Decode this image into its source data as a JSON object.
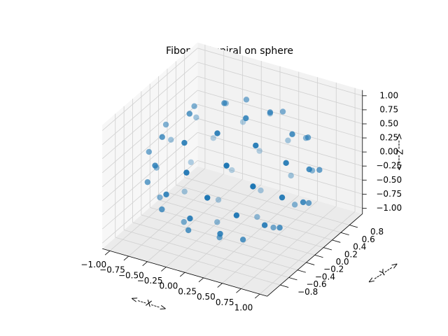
{
  "chart_data": {
    "type": "scatter3d",
    "title": "Fibonacci spiral on sphere",
    "xlabel": "<---X--->",
    "ylabel": "<---Y--->",
    "zlabel": "<---Z--->",
    "color": "#1f77b4",
    "grid": true,
    "xlim": [
      -1.1,
      1.1
    ],
    "ylim": [
      -1.1,
      1.1
    ],
    "zlim": [
      -1.1,
      1.1
    ],
    "xticks": [
      {
        "value": -1,
        "label": "−1.00"
      },
      {
        "value": -0.75,
        "label": "−0.75"
      },
      {
        "value": -0.5,
        "label": "−0.50"
      },
      {
        "value": -0.25,
        "label": "−0.25"
      },
      {
        "value": 0,
        "label": "0.00"
      },
      {
        "value": 0.25,
        "label": "0.25"
      },
      {
        "value": 0.5,
        "label": "0.50"
      },
      {
        "value": 0.75,
        "label": "0.75"
      },
      {
        "value": 1,
        "label": "1.00"
      }
    ],
    "yticks": [
      {
        "value": -0.8,
        "label": "−0.8"
      },
      {
        "value": -0.6,
        "label": "−0.6"
      },
      {
        "value": -0.4,
        "label": "−0.4"
      },
      {
        "value": -0.2,
        "label": "−0.2"
      },
      {
        "value": 0,
        "label": "0.0"
      },
      {
        "value": 0.2,
        "label": "0.2"
      },
      {
        "value": 0.4,
        "label": "0.4"
      },
      {
        "value": 0.6,
        "label": "0.6"
      },
      {
        "value": 0.8,
        "label": "0.8"
      }
    ],
    "zticks": [
      {
        "value": -1,
        "label": "−1.00"
      },
      {
        "value": -0.75,
        "label": "−0.75"
      },
      {
        "value": -0.5,
        "label": "−0.50"
      },
      {
        "value": -0.25,
        "label": "−0.25"
      },
      {
        "value": 0,
        "label": "0.00"
      },
      {
        "value": 0.25,
        "label": "0.25"
      },
      {
        "value": 0.5,
        "label": "0.50"
      },
      {
        "value": 0.75,
        "label": "0.75"
      },
      {
        "value": 1,
        "label": "1.00"
      }
    ],
    "x": [
      0.18,
      -0.23,
      0.03,
      0.29,
      -0.52,
      0.49,
      -0.16,
      -0.3,
      0.66,
      -0.67,
      0.32,
      0.24,
      -0.7,
      0.82,
      -0.49,
      -0.11,
      0.68,
      -0.91,
      0.65,
      -0.04,
      -0.61,
      0.95,
      -0.8,
      0.22,
      0.49,
      -0.94,
      0.9,
      -0.39,
      -0.34,
      0.89,
      -0.97,
      0.54,
      0.17,
      -0.78,
      0.99,
      -0.67,
      0,
      0.65,
      -0.96,
      0.76,
      -0.17,
      -0.49,
      0.88,
      -0.79,
      0.31,
      0.32,
      -0.76,
      0.77,
      -0.4,
      -0.16,
      0.59,
      -0.69,
      0.43,
      0.02,
      -0.41,
      0.53,
      -0.36,
      0.06,
      0.18,
      -0.18
    ],
    "y": [
      0,
      0.21,
      -0.4,
      0.37,
      -0.09,
      -0.31,
      0.6,
      -0.59,
      0.24,
      0.28,
      -0.69,
      0.75,
      -0.41,
      -0.18,
      0.7,
      -0.87,
      0.57,
      0.04,
      -0.65,
      0.94,
      -0.73,
      0.13,
      0.55,
      -0.96,
      0.85,
      -0.3,
      -0.41,
      0.92,
      -0.94,
      0.47,
      0.26,
      -0.84,
      0.99,
      -0.61,
      -0.08,
      0.72,
      -0.98,
      0.72,
      -0.09,
      -0.57,
      0.92,
      -0.78,
      0.24,
      0.41,
      -0.82,
      0.8,
      -0.36,
      -0.24,
      0.68,
      -0.74,
      0.42,
      0.09,
      -0.5,
      0.62,
      -0.41,
      0.03,
      0.3,
      -0.4,
      0.26,
      -0.04
    ],
    "z": [
      0.98,
      0.95,
      0.92,
      0.88,
      0.85,
      0.82,
      0.78,
      0.75,
      0.72,
      0.68,
      0.65,
      0.62,
      0.58,
      0.55,
      0.52,
      0.48,
      0.45,
      0.42,
      0.38,
      0.35,
      0.32,
      0.28,
      0.25,
      0.22,
      0.18,
      0.15,
      0.12,
      0.08,
      0.05,
      0.02,
      -0.02,
      -0.05,
      -0.08,
      -0.12,
      -0.15,
      -0.18,
      -0.22,
      -0.25,
      -0.28,
      -0.32,
      -0.35,
      -0.38,
      -0.42,
      -0.45,
      -0.48,
      -0.52,
      -0.55,
      -0.58,
      -0.62,
      -0.65,
      -0.68,
      -0.72,
      -0.75,
      -0.78,
      -0.82,
      -0.85,
      -0.88,
      -0.92,
      -0.95,
      -0.98
    ]
  }
}
